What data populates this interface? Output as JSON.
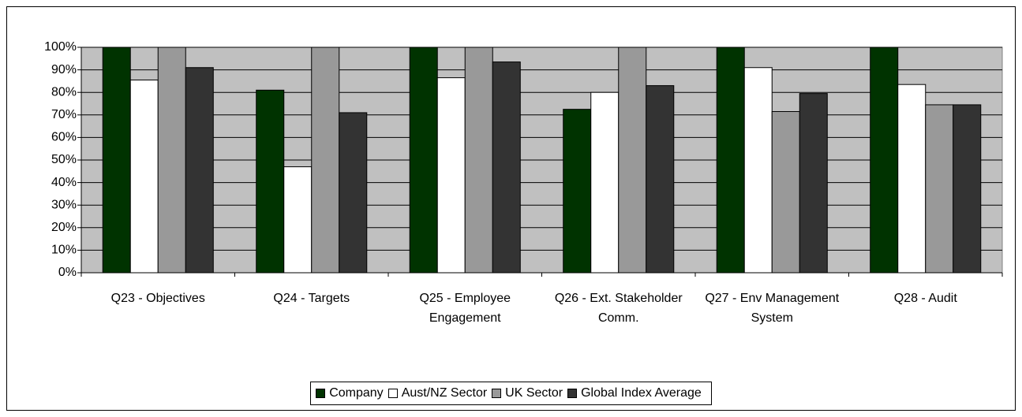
{
  "chart_data": {
    "type": "bar",
    "categories": [
      "Q23 - Objectives",
      "Q24 - Targets",
      "Q25 - Employee Engagement",
      "Q26 - Ext. Stakeholder Comm.",
      "Q27 - Env Management System",
      "Q28 - Audit"
    ],
    "series": [
      {
        "name": "Company",
        "color": "#003300",
        "values": [
          100,
          81,
          100,
          72.5,
          100,
          100
        ]
      },
      {
        "name": "Aust/NZ Sector",
        "color": "#ffffff",
        "values": [
          85.5,
          47,
          86.5,
          80,
          91,
          83.5
        ]
      },
      {
        "name": "UK Sector",
        "color": "#999999",
        "values": [
          100,
          100,
          100,
          100,
          71.5,
          74.5
        ]
      },
      {
        "name": "Global Index Average",
        "color": "#333333",
        "values": [
          91,
          71,
          93.5,
          83,
          79.5,
          74.5
        ]
      }
    ],
    "ylim": [
      0,
      100
    ],
    "yticks": [
      {
        "value": 0,
        "label": "0%"
      },
      {
        "value": 10,
        "label": "10%"
      },
      {
        "value": 20,
        "label": "20%"
      },
      {
        "value": 30,
        "label": "30%"
      },
      {
        "value": 40,
        "label": "40%"
      },
      {
        "value": 50,
        "label": "50%"
      },
      {
        "value": 60,
        "label": "60%"
      },
      {
        "value": 70,
        "label": "70%"
      },
      {
        "value": 80,
        "label": "80%"
      },
      {
        "value": 90,
        "label": "90%"
      },
      {
        "value": 100,
        "label": "100%"
      }
    ],
    "grid": true,
    "plot_background": "#c0c0c0",
    "legend": "bottom"
  }
}
